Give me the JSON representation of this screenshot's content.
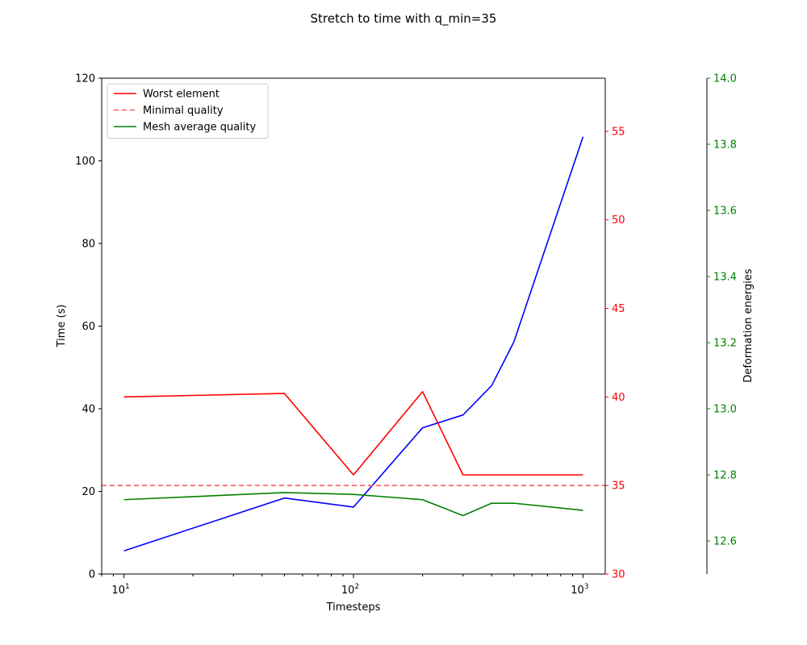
{
  "chart_data": {
    "type": "line",
    "title": "Stretch to time with q_min=35",
    "xlabel": "Timesteps",
    "x_scale": "log",
    "xlim": [
      8,
      1250
    ],
    "x_ticks": [
      {
        "value": 10,
        "base": "10",
        "exp": "1"
      },
      {
        "value": 100,
        "base": "10",
        "exp": "2"
      },
      {
        "value": 1000,
        "base": "10",
        "exp": "3"
      }
    ],
    "axes": {
      "left": {
        "label": "Time (s)",
        "ylim": [
          0,
          120
        ],
        "ticks": [
          0,
          20,
          40,
          60,
          80,
          100,
          120
        ],
        "color": "#000000"
      },
      "right": {
        "label": "",
        "ylim": [
          30,
          58
        ],
        "ticks": [
          30,
          35,
          40,
          45,
          50,
          55
        ],
        "color": "#ff0000"
      },
      "far_right": {
        "label": "Deformation energies",
        "ylim": [
          12.5,
          14.0
        ],
        "ticks": [
          "12.6",
          "12.8",
          "13.0",
          "13.2",
          "13.4",
          "13.6",
          "13.8",
          "14.0"
        ],
        "color": "#008000"
      }
    },
    "series": [
      {
        "name": "",
        "axis": "left",
        "color": "#0000ff",
        "dash": "",
        "x": [
          10,
          50,
          100,
          200,
          300,
          400,
          500,
          1000
        ],
        "y": [
          5.6,
          18.4,
          16.2,
          35.4,
          38.5,
          45.6,
          56.2,
          105.8
        ]
      },
      {
        "name": "Worst element",
        "axis": "right",
        "color": "#ff0000",
        "dash": "",
        "x": [
          10,
          50,
          100,
          200,
          300,
          400,
          500,
          1000
        ],
        "y": [
          40.0,
          40.2,
          35.6,
          40.3,
          35.6,
          35.6,
          35.6,
          35.6
        ]
      },
      {
        "name": "Minimal quality",
        "axis": "right",
        "color": "#ff6060",
        "dash": "6,4",
        "hline": 35
      },
      {
        "name": "Mesh average quality",
        "axis": "right",
        "color": "#008000",
        "dash": "",
        "x": [
          10,
          50,
          100,
          200,
          300,
          400,
          500,
          1000
        ],
        "y": [
          34.2,
          34.6,
          34.5,
          34.2,
          33.3,
          34.0,
          34.0,
          33.6
        ]
      }
    ],
    "legend_position": "upper-left",
    "grid": false
  }
}
